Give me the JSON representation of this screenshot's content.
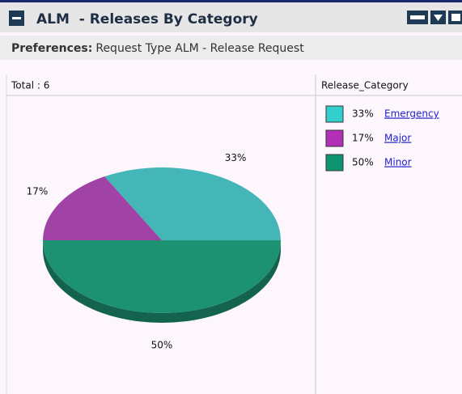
{
  "header": {
    "title": "ALM  - Releases By Category"
  },
  "preferences": {
    "label": "Preferences:",
    "value": "Request Type ALM - Release Request"
  },
  "chart_data": {
    "type": "pie",
    "total_label": "Total : 6",
    "legend_title": "Release_Category",
    "categories": [
      "Emergency",
      "Major",
      "Minor"
    ],
    "values": [
      33,
      17,
      50
    ],
    "value_labels": [
      "33%",
      "17%",
      "50%"
    ],
    "colors": [
      "#44b6b8",
      "#a042a6",
      "#1c9272"
    ],
    "legend_colors": [
      "#33cfcf",
      "#b22fb8",
      "#0f9471"
    ]
  }
}
